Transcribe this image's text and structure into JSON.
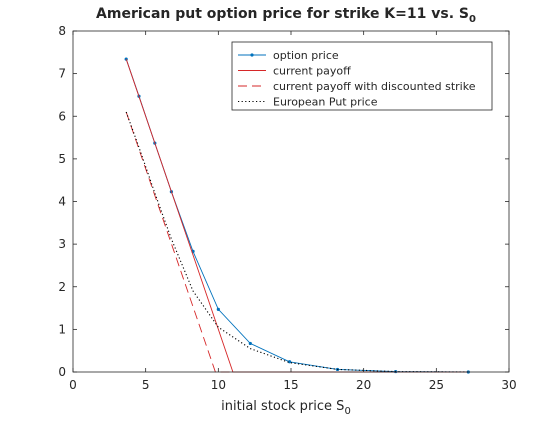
{
  "chart_data": {
    "type": "line",
    "title": "American put option price for strike K=11 vs. S",
    "title_subscript": "0",
    "xlabel": "initial stock price S",
    "xlabel_subscript": "0",
    "ylabel": "",
    "xlim": [
      0,
      30
    ],
    "ylim": [
      0,
      8
    ],
    "xticks": [
      0,
      5,
      10,
      15,
      20,
      25,
      30
    ],
    "yticks": [
      0,
      1,
      2,
      3,
      4,
      5,
      6,
      7,
      8
    ],
    "grid": false,
    "legend_position": "top-right",
    "series": [
      {
        "name": "option price",
        "color": "#0072BD",
        "style": "solid-with-point-markers",
        "x": [
          3.66,
          4.54,
          5.63,
          6.77,
          8.26,
          10.0,
          12.2,
          14.9,
          18.2,
          22.2,
          27.2
        ],
        "y": [
          7.34,
          6.47,
          5.37,
          4.23,
          2.83,
          1.47,
          0.67,
          0.24,
          0.06,
          0.01,
          0.0
        ]
      },
      {
        "name": "current payoff",
        "color": "#D62728",
        "style": "solid",
        "x": [
          3.66,
          11.0,
          27.2
        ],
        "y": [
          7.34,
          0.0,
          0.0
        ]
      },
      {
        "name": "current payoff with discounted strike",
        "color": "#D62728",
        "style": "dashed",
        "x": [
          3.66,
          9.8,
          27.2
        ],
        "y": [
          6.1,
          0.0,
          0.0
        ]
      },
      {
        "name": "European Put price",
        "color": "#000000",
        "style": "dotted",
        "x": [
          3.66,
          4.54,
          5.63,
          6.77,
          8.26,
          10.0,
          12.2,
          14.9,
          18.2,
          22.2,
          27.2
        ],
        "y": [
          6.1,
          5.27,
          4.2,
          3.12,
          1.9,
          1.05,
          0.55,
          0.22,
          0.06,
          0.01,
          0.0
        ]
      }
    ]
  }
}
